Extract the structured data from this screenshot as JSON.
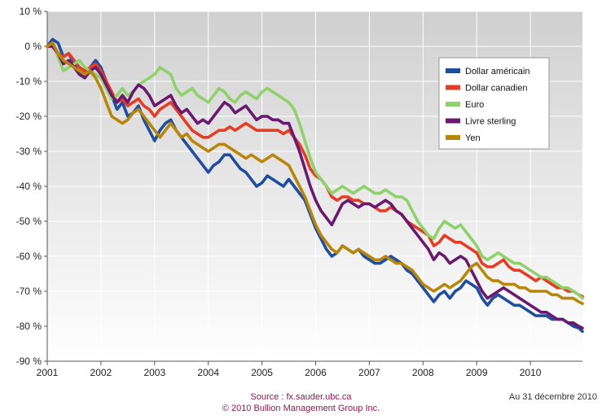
{
  "chart_data": {
    "type": "line",
    "title": "",
    "xlabel": "",
    "ylabel": "",
    "x_ticks": [
      "2001",
      "2002",
      "2003",
      "2004",
      "2005",
      "2006",
      "2007",
      "2008",
      "2009",
      "2010"
    ],
    "y_ticks": [
      "10 %",
      "0 %",
      "-10 %",
      "-20 %",
      "-30 %",
      "-40 %",
      "-50 %",
      "-60 %",
      "-70 %",
      "-80 %",
      "-90 %"
    ],
    "xlim": [
      2001,
      2010.97
    ],
    "ylim": [
      -90,
      10
    ],
    "grid": true,
    "legend_position": "right",
    "x": [
      2001.0,
      2001.1,
      2001.2,
      2001.3,
      2001.4,
      2001.5,
      2001.6,
      2001.7,
      2001.8,
      2001.9,
      2002.0,
      2002.1,
      2002.2,
      2002.3,
      2002.4,
      2002.5,
      2002.6,
      2002.7,
      2002.8,
      2002.9,
      2003.0,
      2003.1,
      2003.2,
      2003.3,
      2003.4,
      2003.5,
      2003.6,
      2003.7,
      2003.8,
      2003.9,
      2004.0,
      2004.1,
      2004.2,
      2004.3,
      2004.4,
      2004.5,
      2004.6,
      2004.7,
      2004.8,
      2004.9,
      2005.0,
      2005.1,
      2005.2,
      2005.3,
      2005.4,
      2005.5,
      2005.6,
      2005.7,
      2005.8,
      2005.9,
      2006.0,
      2006.1,
      2006.2,
      2006.3,
      2006.4,
      2006.5,
      2006.6,
      2006.7,
      2006.8,
      2006.9,
      2007.0,
      2007.1,
      2007.2,
      2007.3,
      2007.4,
      2007.5,
      2007.6,
      2007.7,
      2007.8,
      2007.9,
      2008.0,
      2008.1,
      2008.2,
      2008.3,
      2008.4,
      2008.5,
      2008.6,
      2008.7,
      2008.8,
      2008.9,
      2009.0,
      2009.1,
      2009.2,
      2009.3,
      2009.4,
      2009.5,
      2009.6,
      2009.7,
      2009.8,
      2009.9,
      2010.0,
      2010.1,
      2010.2,
      2010.3,
      2010.4,
      2010.5,
      2010.6,
      2010.7,
      2010.8,
      2010.9,
      2010.97
    ],
    "series": [
      {
        "name": "Dollar américain",
        "color": "#1f4e9e",
        "values": [
          0,
          2,
          1,
          -3,
          -2,
          -5,
          -8,
          -9,
          -6,
          -4,
          -6,
          -10,
          -14,
          -18,
          -16,
          -20,
          -19,
          -17,
          -21,
          -24,
          -27,
          -24,
          -22,
          -21,
          -24,
          -26,
          -28,
          -30,
          -32,
          -34,
          -36,
          -34,
          -33,
          -31,
          -31,
          -33,
          -35,
          -36,
          -38,
          -40,
          -39,
          -37,
          -38,
          -39,
          -40,
          -38,
          -40,
          -42,
          -44,
          -48,
          -52,
          -55,
          -58,
          -60,
          -59,
          -57,
          -58,
          -59,
          -58,
          -60,
          -61,
          -62,
          -62,
          -61,
          -60,
          -61,
          -62,
          -64,
          -65,
          -67,
          -69,
          -71,
          -73,
          -71,
          -70,
          -72,
          -70,
          -69,
          -67,
          -68,
          -69,
          -72,
          -74,
          -72,
          -71,
          -72,
          -73,
          -74,
          -74,
          -75,
          -76,
          -77,
          -77,
          -77,
          -78,
          -78,
          -78,
          -79,
          -80,
          -80.5,
          -81.5
        ]
      },
      {
        "name": "Dollar canadien",
        "color": "#e63b25",
        "values": [
          0,
          0,
          -2,
          -3,
          -2,
          -4,
          -6,
          -7,
          -6,
          -5,
          -7,
          -10,
          -13,
          -16,
          -15,
          -17,
          -16,
          -15,
          -17,
          -18,
          -20,
          -18,
          -17,
          -16,
          -18,
          -20,
          -22,
          -24,
          -25,
          -26,
          -26,
          -25,
          -24,
          -24,
          -23,
          -24,
          -23,
          -22,
          -23,
          -24,
          -24,
          -24,
          -24,
          -24,
          -25,
          -24,
          -26,
          -28,
          -31,
          -35,
          -37,
          -38,
          -40,
          -43,
          -44,
          -43,
          -43,
          -44,
          -44,
          -45,
          -45,
          -46,
          -47,
          -47,
          -46,
          -47,
          -48,
          -50,
          -51,
          -52,
          -53,
          -54,
          -57,
          -56,
          -54,
          -55,
          -56,
          -56,
          -57,
          -58,
          -59,
          -62,
          -63,
          -63,
          -62,
          -61,
          -63,
          -64,
          -64,
          -65,
          -66,
          -67,
          -66,
          -67,
          -68,
          -69,
          -69,
          -70,
          -70,
          -71,
          -71.5
        ]
      },
      {
        "name": "Euro",
        "color": "#8fd16a",
        "values": [
          0,
          1,
          -3,
          -7,
          -6,
          -5,
          -4,
          -6,
          -7,
          -8,
          -9,
          -12,
          -15,
          -14,
          -12,
          -14,
          -13,
          -11,
          -10,
          -9,
          -8,
          -6,
          -7,
          -8,
          -12,
          -14,
          -13,
          -12,
          -14,
          -15,
          -16,
          -14,
          -12,
          -13,
          -15,
          -16,
          -14,
          -13,
          -14,
          -15,
          -13,
          -12,
          -13,
          -14,
          -15,
          -16,
          -18,
          -22,
          -27,
          -32,
          -36,
          -38,
          -40,
          -42,
          -41,
          -40,
          -41,
          -42,
          -41,
          -40,
          -41,
          -42,
          -42,
          -41,
          -42,
          -43,
          -43,
          -44,
          -47,
          -50,
          -52,
          -54,
          -55,
          -52,
          -50,
          -51,
          -52,
          -51,
          -53,
          -55,
          -57,
          -60,
          -61,
          -60,
          -59,
          -60,
          -61,
          -62,
          -62,
          -63,
          -64,
          -65,
          -66,
          -66,
          -67,
          -68,
          -69,
          -69,
          -70,
          -71,
          -72
        ]
      },
      {
        "name": "Livre sterling",
        "color": "#6a1a6e",
        "values": [
          0,
          0,
          -2,
          -5,
          -4,
          -6,
          -8,
          -9,
          -7,
          -6,
          -8,
          -11,
          -14,
          -16,
          -14,
          -16,
          -13,
          -11,
          -12,
          -14,
          -17,
          -16,
          -15,
          -14,
          -17,
          -19,
          -18,
          -20,
          -22,
          -21,
          -22,
          -20,
          -18,
          -16,
          -17,
          -19,
          -18,
          -17,
          -19,
          -21,
          -20,
          -20,
          -21,
          -21,
          -22,
          -22,
          -26,
          -30,
          -35,
          -40,
          -44,
          -47,
          -49,
          -51,
          -48,
          -45,
          -44,
          -45,
          -46,
          -45,
          -45,
          -46,
          -45,
          -44,
          -45,
          -47,
          -48,
          -50,
          -52,
          -54,
          -56,
          -58,
          -61,
          -59,
          -60,
          -62,
          -61,
          -60,
          -61,
          -64,
          -67,
          -70,
          -72,
          -71,
          -70,
          -69,
          -70,
          -71,
          -72,
          -73,
          -74,
          -75,
          -76,
          -76,
          -77,
          -78,
          -78,
          -79,
          -79,
          -80,
          -80.5
        ]
      },
      {
        "name": "Yen",
        "color": "#b8860b",
        "values": [
          0,
          1,
          -2,
          -4,
          -5,
          -6,
          -7,
          -8,
          -7,
          -9,
          -12,
          -16,
          -20,
          -21,
          -22,
          -21,
          -19,
          -18,
          -20,
          -22,
          -24,
          -26,
          -24,
          -22,
          -24,
          -26,
          -25,
          -27,
          -28,
          -29,
          -30,
          -29,
          -28,
          -28,
          -29,
          -30,
          -31,
          -32,
          -31,
          -32,
          -33,
          -32,
          -31,
          -32,
          -33,
          -34,
          -37,
          -40,
          -43,
          -47,
          -51,
          -54,
          -56,
          -58,
          -59,
          -57,
          -58,
          -59,
          -58,
          -59,
          -60,
          -61,
          -61,
          -60,
          -61,
          -62,
          -62,
          -63,
          -64,
          -66,
          -68,
          -69,
          -70,
          -69,
          -68,
          -69,
          -68,
          -67,
          -65,
          -63,
          -62,
          -64,
          -66,
          -67,
          -67,
          -68,
          -68,
          -68,
          -69,
          -69,
          -70,
          -70,
          -70,
          -70,
          -71,
          -71,
          -72,
          -72,
          -72,
          -73,
          -73.5
        ]
      }
    ]
  },
  "footer": {
    "source": "Source : fx.sauder.ubc.ca",
    "copyright": "© 2010 Bullion Management Group Inc.",
    "date_note": "Au 31 décembre 2010"
  }
}
